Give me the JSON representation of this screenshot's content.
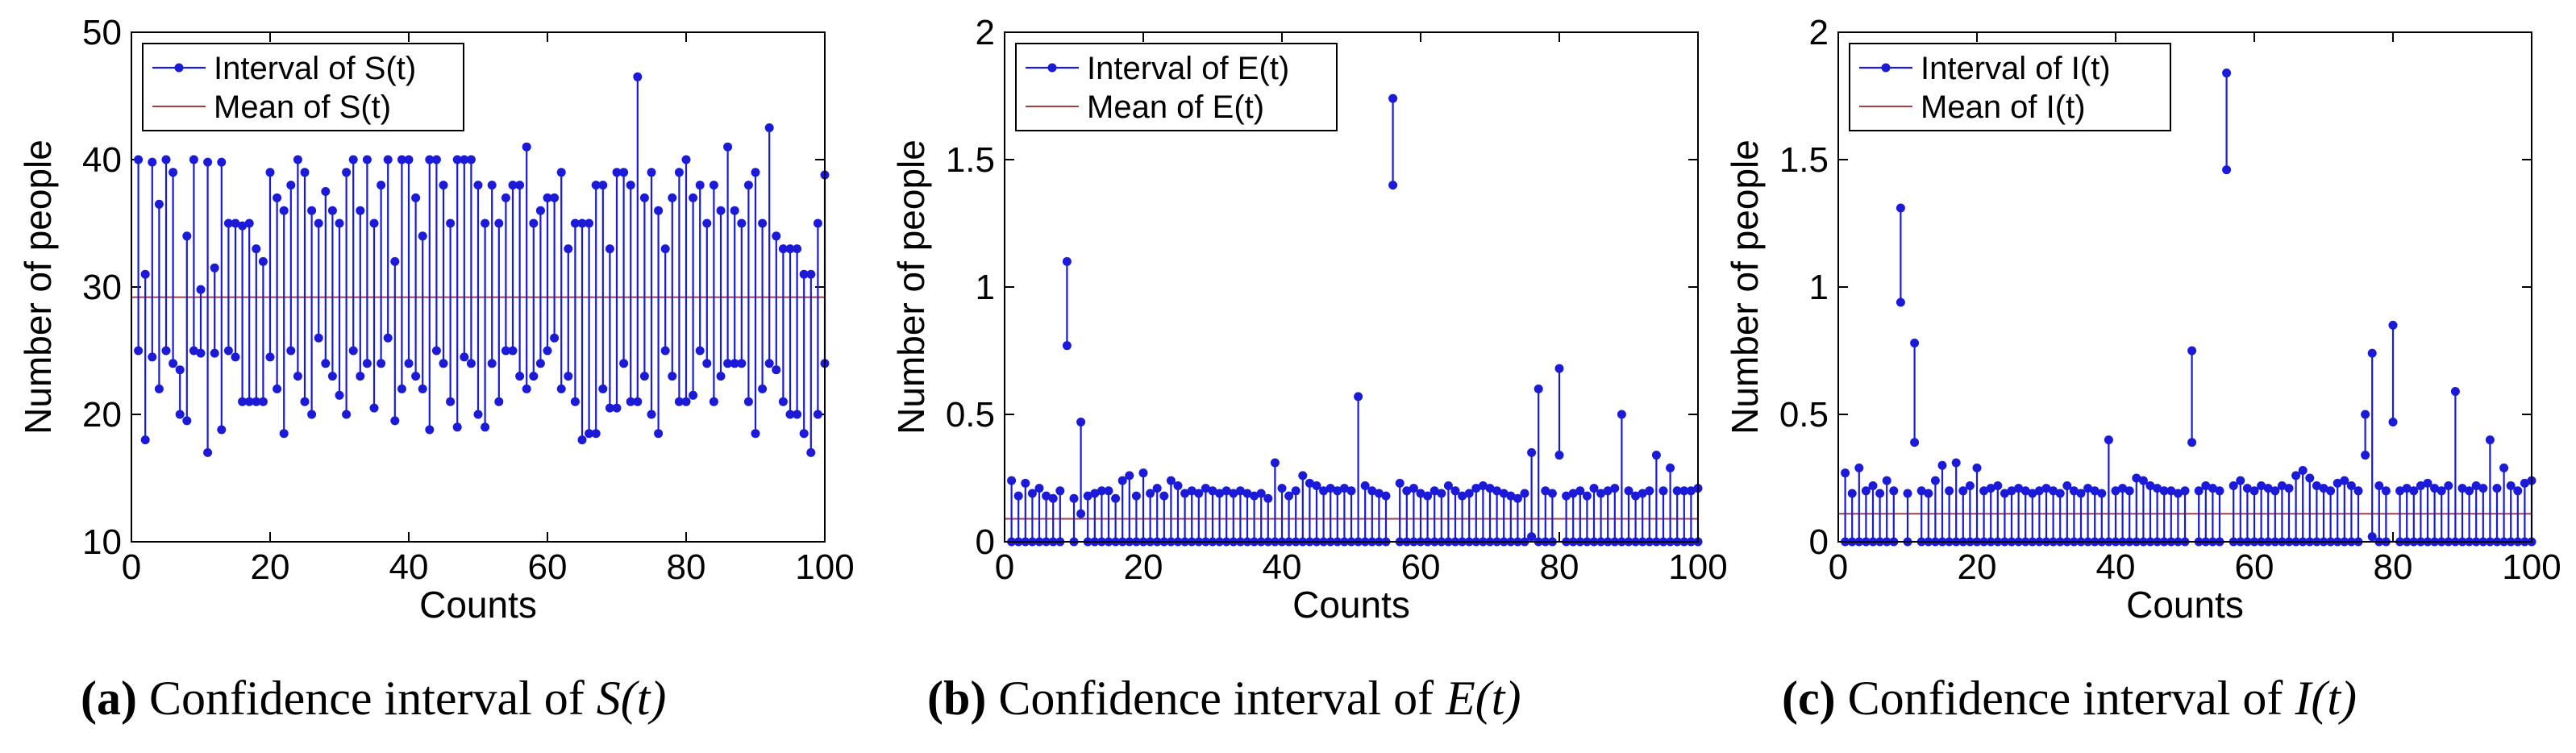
{
  "chart_data": [
    {
      "id": "a",
      "type": "interval-stem",
      "caption": {
        "letter": "(a)",
        "text": "Confidence interval of",
        "symbol": "S(t)"
      },
      "xlabel": "Counts",
      "ylabel": "Number of people",
      "xlim": [
        0,
        100
      ],
      "ylim": [
        10,
        50
      ],
      "xticks": [
        0,
        20,
        40,
        60,
        80,
        100
      ],
      "yticks": [
        10,
        20,
        30,
        40,
        50
      ],
      "legend": [
        "Interval of S(t)",
        "Mean of S(t)"
      ],
      "legend_position": "top-left",
      "mean": 29.2,
      "lower": [
        25,
        18,
        24.5,
        22,
        25,
        24,
        20,
        19.5,
        25,
        24.8,
        17,
        24.8,
        18.8,
        25,
        24.5,
        21,
        21,
        21,
        21,
        24.5,
        22,
        18.5,
        25,
        23,
        21,
        20,
        26,
        24,
        23,
        21.5,
        20,
        25,
        23,
        24,
        20.5,
        24,
        26,
        19.5,
        22,
        24,
        23,
        22,
        18.8,
        25,
        24,
        21,
        19,
        24.5,
        24,
        20,
        19,
        24,
        21,
        25,
        25,
        23,
        22,
        23,
        24,
        25,
        26,
        22,
        23,
        21,
        18,
        18.5,
        18.5,
        22,
        20.5,
        20.5,
        24,
        21,
        21,
        23,
        20,
        18.5,
        25,
        23,
        21,
        21,
        21.5,
        25,
        24,
        21,
        23,
        24,
        24,
        24,
        21,
        18.5,
        22,
        24,
        23.5,
        21,
        20,
        20,
        18.5,
        17,
        20,
        24
      ],
      "upper": [
        40,
        31,
        39.8,
        36.5,
        40,
        39,
        23.5,
        34,
        40,
        29.8,
        39.8,
        31.5,
        39.8,
        35,
        35,
        34.8,
        35,
        33,
        32,
        39,
        37,
        36,
        38,
        40,
        39,
        36,
        35,
        37.5,
        36,
        35,
        39,
        40,
        36,
        40,
        35,
        38,
        40,
        32,
        40,
        40,
        37,
        34,
        40,
        40,
        38,
        35,
        40,
        40,
        40,
        38,
        35,
        38,
        35,
        37,
        38,
        38,
        41,
        35,
        36,
        37,
        37,
        39,
        33,
        35,
        35,
        35,
        38,
        38,
        33,
        39,
        39,
        38,
        46.5,
        37,
        39,
        36,
        33,
        37,
        39,
        40,
        37,
        38,
        35,
        38,
        36,
        41,
        36,
        35,
        38,
        39,
        35,
        42.5,
        34,
        33,
        33,
        33,
        31,
        31,
        35,
        38.8
      ]
    },
    {
      "id": "b",
      "type": "interval-stem",
      "caption": {
        "letter": "(b)",
        "text": "Confidence interval of",
        "symbol": "E(t)"
      },
      "xlabel": "Counts",
      "ylabel": "Number of people",
      "xlim": [
        0,
        100
      ],
      "ylim": [
        0,
        2
      ],
      "xticks": [
        0,
        20,
        40,
        60,
        80,
        100
      ],
      "yticks": [
        0,
        0.5,
        1,
        1.5,
        2
      ],
      "legend": [
        "Interval of E(t)",
        "Mean of E(t)"
      ],
      "legend_position": "top-left",
      "mean": 0.09,
      "lower": [
        0,
        0,
        0,
        0,
        0,
        0,
        0,
        0,
        0.77,
        0,
        0.11,
        0,
        0,
        0,
        0,
        0,
        0,
        0,
        0,
        0,
        0,
        0,
        0,
        0,
        0,
        0,
        0,
        0,
        0,
        0,
        0,
        0,
        0,
        0,
        0,
        0,
        0,
        0,
        0,
        0,
        0,
        0,
        0,
        0,
        0,
        0,
        0,
        0,
        0,
        0,
        0,
        0,
        0,
        0,
        0,
        1.4,
        0,
        0,
        0,
        0,
        0,
        0,
        0,
        0,
        0,
        0,
        0,
        0,
        0,
        0,
        0,
        0,
        0,
        0,
        0,
        0.02,
        0,
        0,
        0,
        0.34,
        0,
        0,
        0,
        0,
        0,
        0,
        0,
        0,
        0,
        0,
        0,
        0,
        0,
        0,
        0,
        0,
        0,
        0,
        0,
        0
      ],
      "upper": [
        0.24,
        0.18,
        0.23,
        0.19,
        0.21,
        0.18,
        0.17,
        0.2,
        1.1,
        0.17,
        0.47,
        0.18,
        0.19,
        0.2,
        0.2,
        0.17,
        0.24,
        0.26,
        0.18,
        0.27,
        0.19,
        0.21,
        0.18,
        0.24,
        0.22,
        0.19,
        0.2,
        0.19,
        0.21,
        0.2,
        0.19,
        0.2,
        0.19,
        0.2,
        0.19,
        0.18,
        0.19,
        0.17,
        0.31,
        0.21,
        0.18,
        0.2,
        0.26,
        0.23,
        0.22,
        0.2,
        0.21,
        0.2,
        0.21,
        0.2,
        0.57,
        0.22,
        0.2,
        0.19,
        0.18,
        1.74,
        0.23,
        0.2,
        0.21,
        0.19,
        0.18,
        0.2,
        0.19,
        0.22,
        0.2,
        0.18,
        0.19,
        0.21,
        0.22,
        0.21,
        0.2,
        0.19,
        0.18,
        0.17,
        0.19,
        0.35,
        0.6,
        0.2,
        0.19,
        0.68,
        0.18,
        0.19,
        0.2,
        0.18,
        0.21,
        0.19,
        0.2,
        0.21,
        0.5,
        0.2,
        0.18,
        0.19,
        0.2,
        0.34,
        0.2,
        0.29,
        0.2,
        0.2,
        0.2,
        0.21
      ]
    },
    {
      "id": "c",
      "type": "interval-stem",
      "caption": {
        "letter": "(c)",
        "text": "Confidence interval of",
        "symbol": "I(t)"
      },
      "xlabel": "Counts",
      "ylabel": "Number of people",
      "xlim": [
        0,
        100
      ],
      "ylim": [
        0,
        2
      ],
      "xticks": [
        0,
        20,
        40,
        60,
        80,
        100
      ],
      "yticks": [
        0,
        0.5,
        1,
        1.5,
        2
      ],
      "legend": [
        "Interval of I(t)",
        "Mean of I(t)"
      ],
      "legend_position": "top-left",
      "mean": 0.11,
      "lower": [
        0,
        0,
        0,
        0,
        0,
        0,
        0,
        0,
        0.94,
        0,
        0.39,
        0,
        0,
        0,
        0,
        0,
        0,
        0,
        0,
        0,
        0,
        0,
        0,
        0,
        0,
        0,
        0,
        0,
        0,
        0,
        0,
        0,
        0,
        0,
        0,
        0,
        0,
        0,
        0,
        0,
        0,
        0,
        0,
        0,
        0,
        0,
        0,
        0,
        0,
        0,
        0.39,
        0,
        0,
        0,
        0,
        1.46,
        0,
        0,
        0,
        0,
        0,
        0,
        0,
        0,
        0,
        0,
        0,
        0,
        0,
        0,
        0,
        0,
        0,
        0,
        0,
        0.34,
        0.02,
        0,
        0,
        0.47,
        0,
        0,
        0,
        0,
        0,
        0,
        0,
        0,
        0,
        0,
        0,
        0,
        0,
        0,
        0,
        0,
        0,
        0,
        0,
        0
      ],
      "upper": [
        0.27,
        0.19,
        0.29,
        0.2,
        0.22,
        0.19,
        0.24,
        0.2,
        1.31,
        0.19,
        0.78,
        0.2,
        0.19,
        0.24,
        0.3,
        0.2,
        0.31,
        0.2,
        0.22,
        0.29,
        0.2,
        0.21,
        0.22,
        0.19,
        0.2,
        0.21,
        0.2,
        0.19,
        0.2,
        0.21,
        0.2,
        0.19,
        0.22,
        0.2,
        0.19,
        0.21,
        0.2,
        0.19,
        0.4,
        0.2,
        0.21,
        0.2,
        0.25,
        0.24,
        0.22,
        0.21,
        0.2,
        0.2,
        0.19,
        0.2,
        0.75,
        0.2,
        0.22,
        0.21,
        0.2,
        1.84,
        0.22,
        0.24,
        0.21,
        0.2,
        0.22,
        0.21,
        0.2,
        0.22,
        0.21,
        0.26,
        0.28,
        0.25,
        0.22,
        0.21,
        0.2,
        0.23,
        0.24,
        0.22,
        0.2,
        0.5,
        0.74,
        0.22,
        0.2,
        0.85,
        0.2,
        0.21,
        0.2,
        0.22,
        0.23,
        0.21,
        0.2,
        0.22,
        0.59,
        0.21,
        0.2,
        0.22,
        0.21,
        0.4,
        0.21,
        0.29,
        0.22,
        0.2,
        0.23,
        0.24
      ]
    }
  ]
}
